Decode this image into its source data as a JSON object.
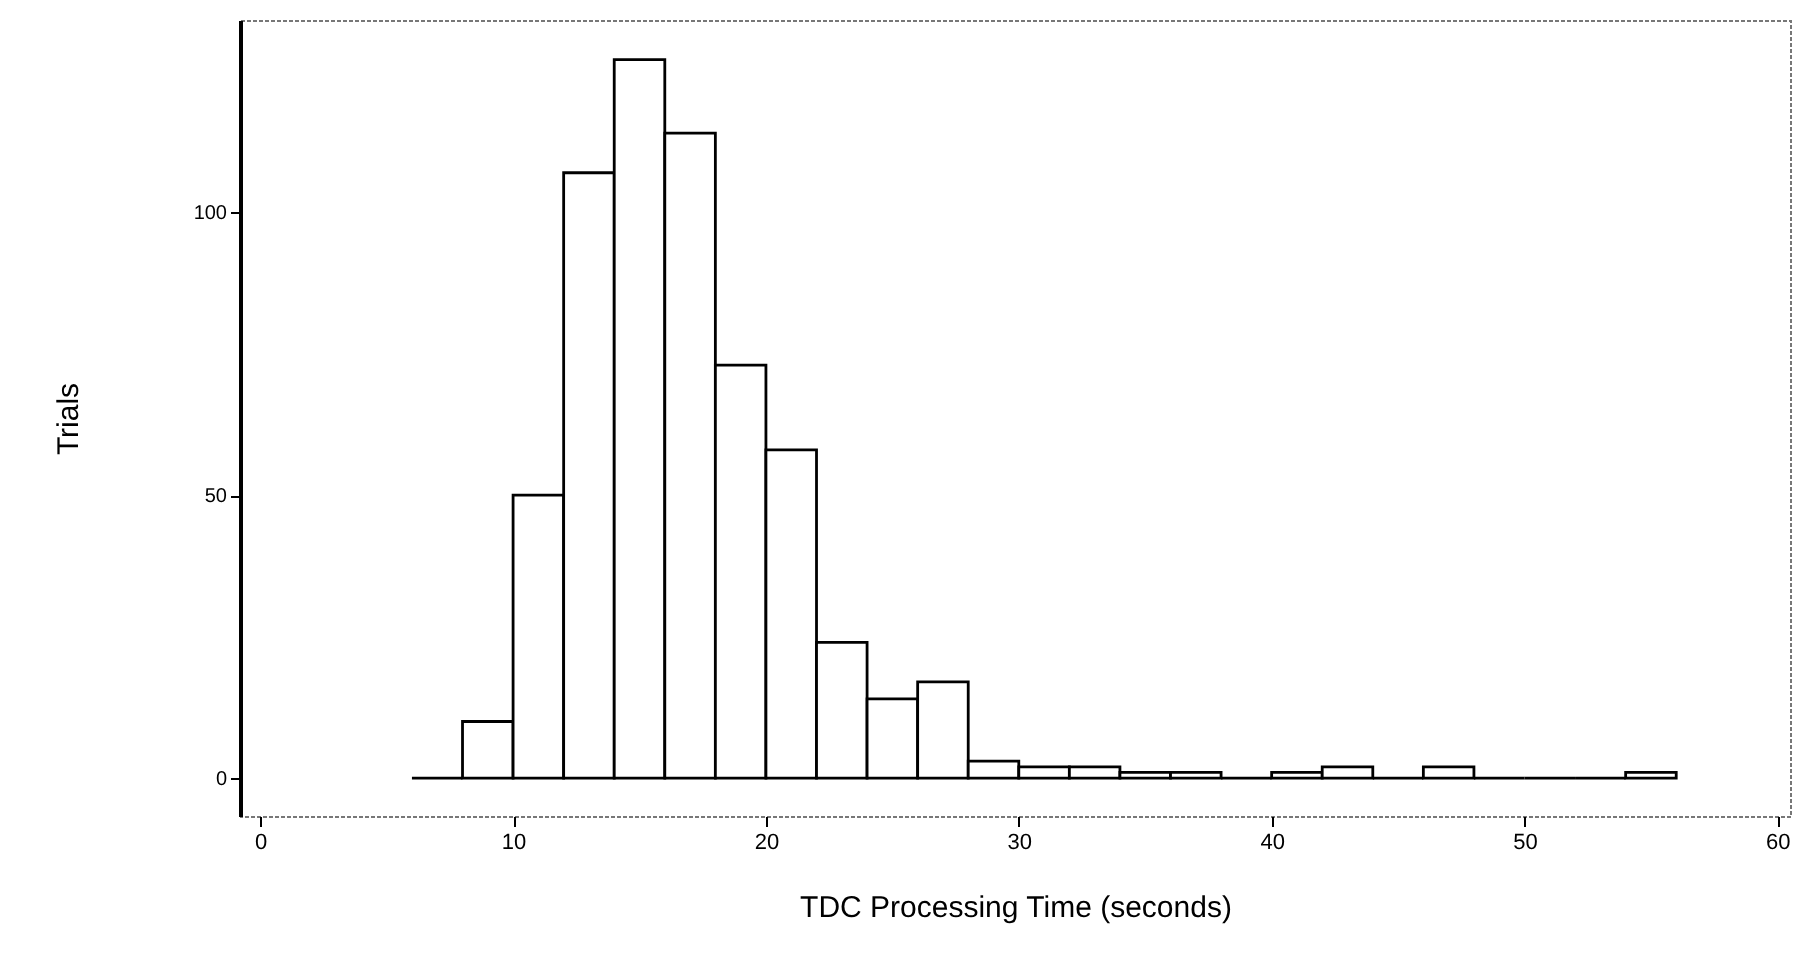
{
  "chart_data": {
    "type": "histogram",
    "xlabel": "TDC Processing Time (seconds)",
    "ylabel": "Trials",
    "bins": [
      6,
      8,
      10,
      12,
      14,
      16,
      18,
      20,
      22,
      24,
      26,
      28,
      30,
      32,
      34,
      36,
      38,
      40,
      42,
      44,
      46,
      48,
      50,
      52,
      54,
      56
    ],
    "values": [
      0,
      10,
      50,
      107,
      127,
      114,
      73,
      58,
      24,
      14,
      17,
      3,
      2,
      2,
      1,
      1,
      0,
      1,
      2,
      0,
      2,
      0,
      0,
      0,
      1
    ],
    "xlim": [
      -0.8,
      60.5
    ],
    "xticks": [
      0,
      10,
      20,
      30,
      40,
      50,
      60
    ],
    "ylim": [
      -6.7,
      134
    ],
    "yticks": [
      0,
      50,
      100
    ],
    "grid": false
  }
}
